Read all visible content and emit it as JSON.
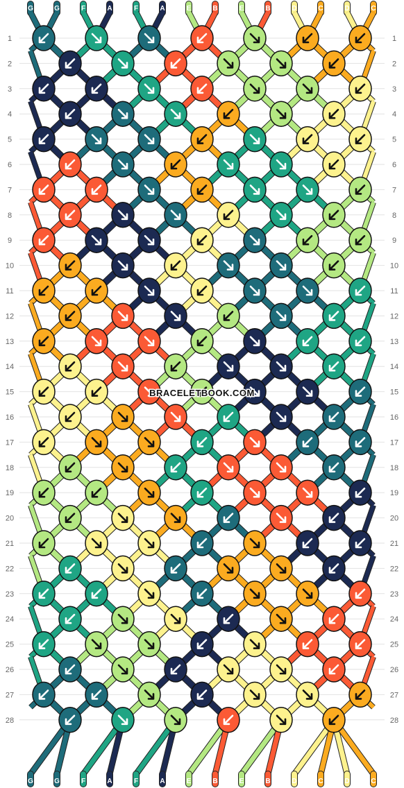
{
  "watermark": "BRACELETBOOK.COM",
  "colors": {
    "G": "#1e6c7a",
    "F": "#1fa584",
    "A": "#1c2a52",
    "E": "#b4e882",
    "B": "#fb5a35",
    "D": "#fdf28e",
    "C": "#fbab20",
    "bg": "#ffffff",
    "grid": "#e2e2e2"
  },
  "strands_top": [
    "G",
    "G",
    "F",
    "A",
    "F",
    "A",
    "E",
    "B",
    "E",
    "B",
    "D",
    "C",
    "D",
    "C"
  ],
  "strands_bottom": [
    "G",
    "G",
    "F",
    "A",
    "F",
    "A",
    "E",
    "B",
    "E",
    "B",
    "D",
    "C",
    "D",
    "C"
  ],
  "knot_rows": [
    {
      "row": "1",
      "knots": [
        [
          "G",
          "bf"
        ],
        [
          "F",
          "f"
        ],
        [
          "G",
          "f"
        ],
        [
          "B",
          "bf"
        ],
        [
          "E",
          "f"
        ],
        [
          "C",
          "bf"
        ],
        [
          "C",
          "bf"
        ]
      ]
    },
    {
      "row": "2",
      "knots": [
        [
          "A",
          "b"
        ],
        [
          "F",
          "f"
        ],
        [
          "B",
          "b"
        ],
        [
          "E",
          "f"
        ],
        [
          "E",
          "f"
        ],
        [
          "C",
          "b"
        ]
      ]
    },
    {
      "row": "3",
      "knots": [
        [
          "A",
          "bf"
        ],
        [
          "A",
          "bf"
        ],
        [
          "F",
          "f"
        ],
        [
          "B",
          "bf"
        ],
        [
          "E",
          "f"
        ],
        [
          "E",
          "f"
        ],
        [
          "D",
          "bf"
        ]
      ]
    },
    {
      "row": "4",
      "knots": [
        [
          "A",
          "b"
        ],
        [
          "G",
          "f"
        ],
        [
          "F",
          "f"
        ],
        [
          "C",
          "b"
        ],
        [
          "E",
          "f"
        ],
        [
          "D",
          "b"
        ]
      ]
    },
    {
      "row": "5",
      "knots": [
        [
          "A",
          "bf"
        ],
        [
          "G",
          "f"
        ],
        [
          "G",
          "f"
        ],
        [
          "C",
          "bf"
        ],
        [
          "F",
          "f"
        ],
        [
          "D",
          "bf"
        ],
        [
          "D",
          "bf"
        ]
      ]
    },
    {
      "row": "6",
      "knots": [
        [
          "B",
          "b"
        ],
        [
          "G",
          "f"
        ],
        [
          "C",
          "b"
        ],
        [
          "F",
          "f"
        ],
        [
          "F",
          "f"
        ],
        [
          "D",
          "b"
        ]
      ]
    },
    {
      "row": "7",
      "knots": [
        [
          "B",
          "bf"
        ],
        [
          "B",
          "bf"
        ],
        [
          "G",
          "f"
        ],
        [
          "C",
          "bf"
        ],
        [
          "F",
          "f"
        ],
        [
          "F",
          "f"
        ],
        [
          "E",
          "bf"
        ]
      ]
    },
    {
      "row": "8",
      "knots": [
        [
          "B",
          "b"
        ],
        [
          "A",
          "f"
        ],
        [
          "G",
          "f"
        ],
        [
          "D",
          "b"
        ],
        [
          "F",
          "f"
        ],
        [
          "E",
          "b"
        ]
      ]
    },
    {
      "row": "9",
      "knots": [
        [
          "B",
          "bf"
        ],
        [
          "A",
          "f"
        ],
        [
          "A",
          "f"
        ],
        [
          "D",
          "bf"
        ],
        [
          "G",
          "f"
        ],
        [
          "E",
          "bf"
        ],
        [
          "E",
          "bf"
        ]
      ]
    },
    {
      "row": "10",
      "knots": [
        [
          "C",
          "b"
        ],
        [
          "A",
          "f"
        ],
        [
          "D",
          "b"
        ],
        [
          "G",
          "f"
        ],
        [
          "G",
          "f"
        ],
        [
          "E",
          "b"
        ]
      ]
    },
    {
      "row": "11",
      "knots": [
        [
          "C",
          "bf"
        ],
        [
          "C",
          "bf"
        ],
        [
          "A",
          "f"
        ],
        [
          "D",
          "bf"
        ],
        [
          "G",
          "f"
        ],
        [
          "G",
          "f"
        ],
        [
          "F",
          "bf"
        ]
      ]
    },
    {
      "row": "12",
      "knots": [
        [
          "C",
          "b"
        ],
        [
          "B",
          "f"
        ],
        [
          "A",
          "f"
        ],
        [
          "E",
          "b"
        ],
        [
          "G",
          "f"
        ],
        [
          "F",
          "b"
        ]
      ]
    },
    {
      "row": "13",
      "knots": [
        [
          "C",
          "bf"
        ],
        [
          "B",
          "f"
        ],
        [
          "B",
          "f"
        ],
        [
          "E",
          "bf"
        ],
        [
          "A",
          "f"
        ],
        [
          "F",
          "bf"
        ],
        [
          "F",
          "bf"
        ]
      ]
    },
    {
      "row": "14",
      "knots": [
        [
          "D",
          "b"
        ],
        [
          "B",
          "f"
        ],
        [
          "E",
          "b"
        ],
        [
          "A",
          "f"
        ],
        [
          "A",
          "f"
        ],
        [
          "F",
          "b"
        ]
      ]
    },
    {
      "row": "15",
      "knots": [
        [
          "D",
          "bf"
        ],
        [
          "D",
          "bf"
        ],
        [
          "B",
          "f"
        ],
        [
          "E",
          "bf"
        ],
        [
          "A",
          "f"
        ],
        [
          "A",
          "f"
        ],
        [
          "G",
          "bf"
        ]
      ]
    },
    {
      "row": "16",
      "knots": [
        [
          "D",
          "b"
        ],
        [
          "C",
          "f"
        ],
        [
          "B",
          "f"
        ],
        [
          "F",
          "b"
        ],
        [
          "A",
          "f"
        ],
        [
          "G",
          "b"
        ]
      ]
    },
    {
      "row": "17",
      "knots": [
        [
          "D",
          "bf"
        ],
        [
          "C",
          "f"
        ],
        [
          "C",
          "f"
        ],
        [
          "F",
          "bf"
        ],
        [
          "B",
          "f"
        ],
        [
          "G",
          "bf"
        ],
        [
          "G",
          "bf"
        ]
      ]
    },
    {
      "row": "18",
      "knots": [
        [
          "E",
          "b"
        ],
        [
          "C",
          "f"
        ],
        [
          "F",
          "b"
        ],
        [
          "B",
          "f"
        ],
        [
          "B",
          "f"
        ],
        [
          "G",
          "b"
        ]
      ]
    },
    {
      "row": "19",
      "knots": [
        [
          "E",
          "bf"
        ],
        [
          "E",
          "bf"
        ],
        [
          "C",
          "f"
        ],
        [
          "F",
          "bf"
        ],
        [
          "B",
          "f"
        ],
        [
          "B",
          "f"
        ],
        [
          "A",
          "bf"
        ]
      ]
    },
    {
      "row": "20",
      "knots": [
        [
          "E",
          "b"
        ],
        [
          "D",
          "f"
        ],
        [
          "C",
          "f"
        ],
        [
          "G",
          "b"
        ],
        [
          "B",
          "f"
        ],
        [
          "A",
          "b"
        ]
      ]
    },
    {
      "row": "21",
      "knots": [
        [
          "E",
          "bf"
        ],
        [
          "D",
          "f"
        ],
        [
          "D",
          "f"
        ],
        [
          "G",
          "bf"
        ],
        [
          "C",
          "f"
        ],
        [
          "A",
          "bf"
        ],
        [
          "A",
          "bf"
        ]
      ]
    },
    {
      "row": "22",
      "knots": [
        [
          "F",
          "b"
        ],
        [
          "D",
          "f"
        ],
        [
          "G",
          "b"
        ],
        [
          "C",
          "f"
        ],
        [
          "C",
          "f"
        ],
        [
          "A",
          "b"
        ]
      ]
    },
    {
      "row": "23",
      "knots": [
        [
          "F",
          "bf"
        ],
        [
          "F",
          "bf"
        ],
        [
          "D",
          "f"
        ],
        [
          "G",
          "bf"
        ],
        [
          "C",
          "f"
        ],
        [
          "C",
          "f"
        ],
        [
          "B",
          "bf"
        ]
      ]
    },
    {
      "row": "24",
      "knots": [
        [
          "F",
          "b"
        ],
        [
          "E",
          "f"
        ],
        [
          "D",
          "f"
        ],
        [
          "A",
          "b"
        ],
        [
          "C",
          "f"
        ],
        [
          "B",
          "b"
        ]
      ]
    },
    {
      "row": "25",
      "knots": [
        [
          "F",
          "bf"
        ],
        [
          "E",
          "f"
        ],
        [
          "E",
          "f"
        ],
        [
          "A",
          "bf"
        ],
        [
          "D",
          "f"
        ],
        [
          "B",
          "bf"
        ],
        [
          "B",
          "bf"
        ]
      ]
    },
    {
      "row": "26",
      "knots": [
        [
          "G",
          "b"
        ],
        [
          "E",
          "f"
        ],
        [
          "A",
          "b"
        ],
        [
          "D",
          "f"
        ],
        [
          "D",
          "f"
        ],
        [
          "B",
          "b"
        ]
      ]
    },
    {
      "row": "27",
      "knots": [
        [
          "G",
          "bf"
        ],
        [
          "G",
          "bf"
        ],
        [
          "E",
          "f"
        ],
        [
          "A",
          "bf"
        ],
        [
          "D",
          "f"
        ],
        [
          "D",
          "f"
        ],
        [
          "C",
          "bf"
        ]
      ]
    },
    {
      "row": "28",
      "knots": [
        [
          "G",
          "b"
        ],
        [
          "F",
          "f"
        ],
        [
          "E",
          "f"
        ],
        [
          "B",
          "b"
        ],
        [
          "D",
          "f"
        ],
        [
          "C",
          "b"
        ]
      ]
    }
  ]
}
